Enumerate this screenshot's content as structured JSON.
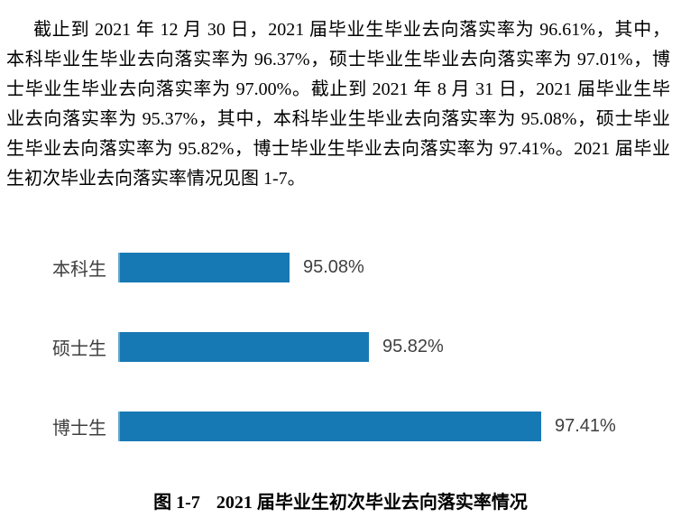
{
  "page": {
    "background": "#ffffff"
  },
  "paragraph": {
    "lines": [
      "截止到 2021 年 12 月 30 日，2021 届毕业生毕业去向落实率为 96.61%，其中，",
      "本科毕业生毕业去向落实率为 96.37%，硕士毕业生毕业去向落实率为 97.01%，博",
      "士毕业生毕业去向落实率为 97.00%。截止到 2021 年 8 月 31 日，2021 届毕业生毕",
      "业去向落实率为 95.37%，其中，本科毕业生毕业去向落实率为 95.08%，硕士毕业",
      "生毕业去向落实率为 95.82%，博士毕业生毕业去向落实率为 97.41%。2021 届毕业",
      "生初次毕业去向落实率情况见图 1-7。"
    ]
  },
  "chart_data": {
    "type": "bar",
    "orientation": "horizontal",
    "title": "",
    "xlabel": "",
    "ylabel": "",
    "categories": [
      "本科生",
      "硕士生",
      "博士生"
    ],
    "values": [
      95.08,
      95.82,
      97.41
    ],
    "value_labels": [
      "95.08%",
      "95.82%",
      "97.41%"
    ],
    "xlim": [
      93.5,
      98.0
    ],
    "grid": false,
    "legend": false,
    "axis_visible": false,
    "bar_color": "#1779b4",
    "label_color": "#3f3f3f"
  },
  "caption": {
    "prefix": "图 1-7",
    "title": "2021 届毕业生初次毕业去向落实率情况"
  }
}
